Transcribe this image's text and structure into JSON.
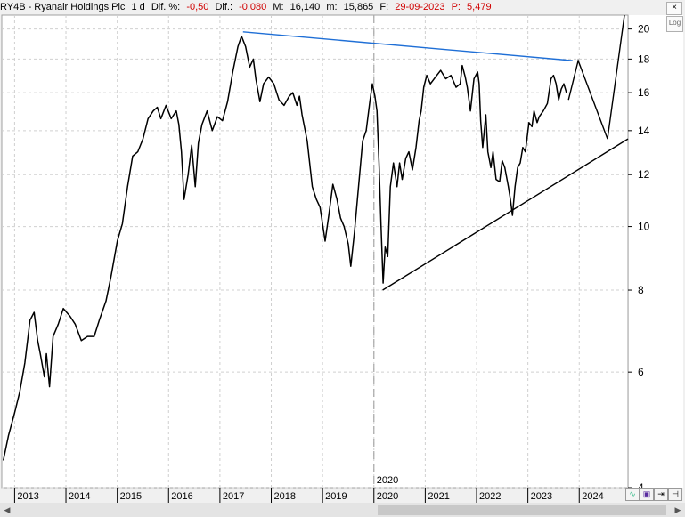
{
  "header": {
    "ticker": "RY4B - Ryanair Holdings Plc",
    "interval": "1 d",
    "pct_label": "Dif. %:",
    "pct_value": "-0,50",
    "diff_label": "Dif.:",
    "diff_value": "-0,080",
    "max_label": "M:",
    "max_value": "16,140",
    "min_label": "m:",
    "min_value": "15,865",
    "date_label": "F:",
    "date_value": "29-09-2023",
    "p_label": "P:",
    "p_value": "5,479"
  },
  "buttons": {
    "close": "×",
    "log": "Log",
    "scroll_left": "◀",
    "scroll_right": "▶"
  },
  "colors": {
    "price": "#000000",
    "resistance": "#1f6fd6",
    "negative": "#d00000",
    "grid": "#d0d0d0",
    "background": "#ffffff"
  },
  "chart_data": {
    "type": "line",
    "yscale": "log",
    "ylim": [
      4,
      21
    ],
    "yticks": [
      4,
      6,
      8,
      10,
      12,
      14,
      16,
      18,
      20
    ],
    "xlim": [
      2012.75,
      2024.95
    ],
    "xticks": [
      "2013",
      "2014",
      "2015",
      "2016",
      "2017",
      "2018",
      "2019",
      "2020",
      "2021",
      "2022",
      "2023",
      "2024"
    ],
    "marker_label": "2020",
    "series": [
      {
        "values": [
          [
            2012.78,
            4.4
          ],
          [
            2012.88,
            4.8
          ],
          [
            2013.0,
            5.2
          ],
          [
            2013.1,
            5.6
          ],
          [
            2013.2,
            6.2
          ],
          [
            2013.3,
            7.2
          ],
          [
            2013.38,
            7.4
          ],
          [
            2013.45,
            6.7
          ],
          [
            2013.5,
            6.4
          ],
          [
            2013.58,
            5.9
          ],
          [
            2013.62,
            6.4
          ],
          [
            2013.68,
            5.7
          ],
          [
            2013.75,
            6.8
          ],
          [
            2013.85,
            7.1
          ],
          [
            2013.95,
            7.5
          ],
          [
            2014.08,
            7.3
          ],
          [
            2014.18,
            7.1
          ],
          [
            2014.3,
            6.7
          ],
          [
            2014.42,
            6.8
          ],
          [
            2014.55,
            6.8
          ],
          [
            2014.65,
            7.2
          ],
          [
            2014.78,
            7.7
          ],
          [
            2014.88,
            8.4
          ],
          [
            2015.0,
            9.5
          ],
          [
            2015.1,
            10.1
          ],
          [
            2015.2,
            11.5
          ],
          [
            2015.3,
            12.8
          ],
          [
            2015.4,
            13.0
          ],
          [
            2015.5,
            13.6
          ],
          [
            2015.6,
            14.6
          ],
          [
            2015.7,
            15.0
          ],
          [
            2015.78,
            15.2
          ],
          [
            2015.85,
            14.6
          ],
          [
            2015.95,
            15.3
          ],
          [
            2016.05,
            14.6
          ],
          [
            2016.15,
            15.0
          ],
          [
            2016.2,
            14.3
          ],
          [
            2016.25,
            13.0
          ],
          [
            2016.3,
            11.0
          ],
          [
            2016.38,
            12.0
          ],
          [
            2016.45,
            13.3
          ],
          [
            2016.52,
            11.5
          ],
          [
            2016.58,
            13.4
          ],
          [
            2016.65,
            14.3
          ],
          [
            2016.75,
            15.0
          ],
          [
            2016.85,
            14.0
          ],
          [
            2016.95,
            14.7
          ],
          [
            2017.05,
            14.5
          ],
          [
            2017.15,
            15.5
          ],
          [
            2017.25,
            17.2
          ],
          [
            2017.35,
            18.8
          ],
          [
            2017.42,
            19.5
          ],
          [
            2017.5,
            18.8
          ],
          [
            2017.58,
            17.5
          ],
          [
            2017.65,
            18.0
          ],
          [
            2017.7,
            16.8
          ],
          [
            2017.78,
            15.5
          ],
          [
            2017.85,
            16.5
          ],
          [
            2017.95,
            16.9
          ],
          [
            2018.05,
            16.5
          ],
          [
            2018.15,
            15.6
          ],
          [
            2018.25,
            15.3
          ],
          [
            2018.35,
            15.8
          ],
          [
            2018.42,
            16.0
          ],
          [
            2018.5,
            15.3
          ],
          [
            2018.55,
            15.8
          ],
          [
            2018.6,
            14.8
          ],
          [
            2018.7,
            13.5
          ],
          [
            2018.8,
            11.5
          ],
          [
            2018.88,
            11.0
          ],
          [
            2018.95,
            10.7
          ],
          [
            2019.05,
            9.5
          ],
          [
            2019.12,
            10.4
          ],
          [
            2019.2,
            11.6
          ],
          [
            2019.28,
            11.0
          ],
          [
            2019.35,
            10.3
          ],
          [
            2019.42,
            10.0
          ],
          [
            2019.5,
            9.4
          ],
          [
            2019.55,
            8.7
          ],
          [
            2019.62,
            9.8
          ],
          [
            2019.7,
            11.5
          ],
          [
            2019.78,
            13.5
          ],
          [
            2019.85,
            14.0
          ],
          [
            2019.92,
            15.5
          ],
          [
            2019.97,
            16.5
          ],
          [
            2020.02,
            15.8
          ],
          [
            2020.06,
            15.0
          ],
          [
            2020.1,
            12.5
          ],
          [
            2020.14,
            10.0
          ],
          [
            2020.18,
            8.2
          ],
          [
            2020.22,
            9.3
          ],
          [
            2020.27,
            9.0
          ],
          [
            2020.32,
            11.5
          ],
          [
            2020.38,
            12.5
          ],
          [
            2020.45,
            11.5
          ],
          [
            2020.5,
            12.5
          ],
          [
            2020.55,
            11.8
          ],
          [
            2020.62,
            12.7
          ],
          [
            2020.68,
            13.0
          ],
          [
            2020.75,
            12.2
          ],
          [
            2020.82,
            13.2
          ],
          [
            2020.88,
            14.5
          ],
          [
            2020.92,
            15.0
          ],
          [
            2020.97,
            16.3
          ],
          [
            2021.03,
            17.0
          ],
          [
            2021.1,
            16.5
          ],
          [
            2021.2,
            16.9
          ],
          [
            2021.3,
            17.3
          ],
          [
            2021.4,
            16.8
          ],
          [
            2021.5,
            17.0
          ],
          [
            2021.6,
            16.3
          ],
          [
            2021.68,
            16.5
          ],
          [
            2021.72,
            17.6
          ],
          [
            2021.78,
            16.9
          ],
          [
            2021.82,
            16.3
          ],
          [
            2021.88,
            15.0
          ],
          [
            2021.95,
            16.8
          ],
          [
            2022.02,
            17.2
          ],
          [
            2022.05,
            16.5
          ],
          [
            2022.08,
            14.5
          ],
          [
            2022.12,
            13.2
          ],
          [
            2022.18,
            14.8
          ],
          [
            2022.22,
            13.0
          ],
          [
            2022.28,
            12.3
          ],
          [
            2022.32,
            13.0
          ],
          [
            2022.38,
            11.8
          ],
          [
            2022.45,
            11.7
          ],
          [
            2022.5,
            12.6
          ],
          [
            2022.55,
            12.3
          ],
          [
            2022.62,
            11.5
          ],
          [
            2022.66,
            11.0
          ],
          [
            2022.7,
            10.4
          ],
          [
            2022.75,
            11.5
          ],
          [
            2022.8,
            12.3
          ],
          [
            2022.85,
            12.5
          ],
          [
            2022.9,
            13.2
          ],
          [
            2022.95,
            13.0
          ],
          [
            2023.02,
            14.4
          ],
          [
            2023.08,
            14.2
          ],
          [
            2023.12,
            15.0
          ],
          [
            2023.18,
            14.4
          ],
          [
            2023.22,
            14.7
          ],
          [
            2023.3,
            15.0
          ],
          [
            2023.38,
            15.4
          ],
          [
            2023.45,
            16.8
          ],
          [
            2023.5,
            17.0
          ],
          [
            2023.55,
            16.5
          ],
          [
            2023.6,
            15.6
          ],
          [
            2023.65,
            16.2
          ],
          [
            2023.7,
            16.5
          ],
          [
            2023.75,
            16.0
          ]
        ]
      }
    ],
    "annotations": [
      {
        "name": "resistance-line",
        "color": "#1f6fd6",
        "values": [
          [
            2017.45,
            19.8
          ],
          [
            2023.87,
            17.9
          ]
        ]
      },
      {
        "name": "support-line",
        "color": "#000000",
        "values": [
          [
            2020.17,
            8.0
          ],
          [
            2024.95,
            13.6
          ]
        ]
      },
      {
        "name": "projection-line",
        "color": "#000000",
        "values": [
          [
            2023.79,
            15.6
          ],
          [
            2023.98,
            17.9
          ],
          [
            2024.55,
            13.6
          ],
          [
            2024.88,
            21
          ]
        ]
      }
    ]
  }
}
